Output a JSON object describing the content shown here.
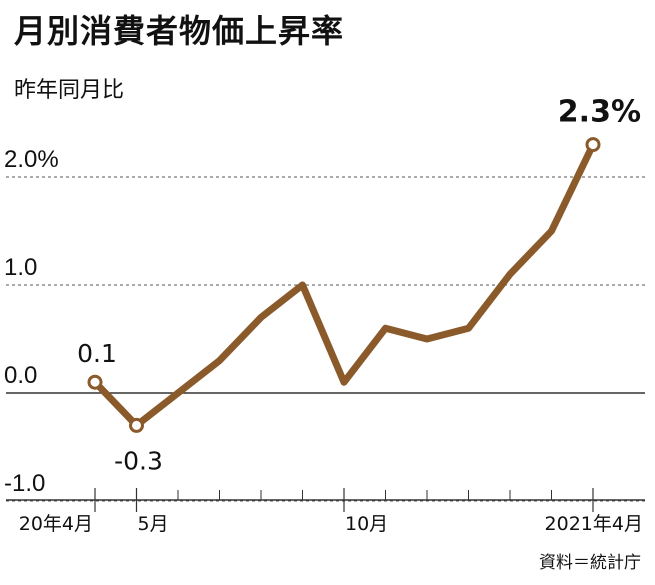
{
  "chart_data": {
    "type": "line",
    "title": "月別消費者物価上昇率",
    "ylabel": "昨年同月比",
    "source": "資料＝統計庁",
    "x": [
      "2020-04",
      "2020-05",
      "2020-06",
      "2020-07",
      "2020-08",
      "2020-09",
      "2020-10",
      "2020-11",
      "2020-12",
      "2021-01",
      "2021-02",
      "2021-03",
      "2021-04"
    ],
    "values": [
      0.1,
      -0.3,
      0.0,
      0.3,
      0.7,
      1.0,
      0.1,
      0.6,
      0.5,
      0.6,
      1.1,
      1.5,
      2.3
    ],
    "ylim": [
      -1.0,
      2.0
    ],
    "yticks": [
      {
        "value": 2.0,
        "label": "2.0%"
      },
      {
        "value": 1.0,
        "label": "1.0"
      },
      {
        "value": 0.0,
        "label": "0.0"
      },
      {
        "value": -1.0,
        "label": "-1.0"
      }
    ],
    "xticks": [
      {
        "index": 0,
        "label": "20年4月"
      },
      {
        "index": 1,
        "label": "5月"
      },
      {
        "index": 6,
        "label": "10月"
      },
      {
        "index": 12,
        "label": "2021年4月"
      }
    ],
    "data_labels": [
      {
        "index": 0,
        "label": "0.1",
        "position": "above"
      },
      {
        "index": 1,
        "label": "-0.3",
        "position": "below"
      },
      {
        "index": 12,
        "label": "2.3%",
        "position": "above",
        "bold": true
      }
    ],
    "grid": "dashed-horizontal",
    "line_color": "#8b5a2b"
  }
}
